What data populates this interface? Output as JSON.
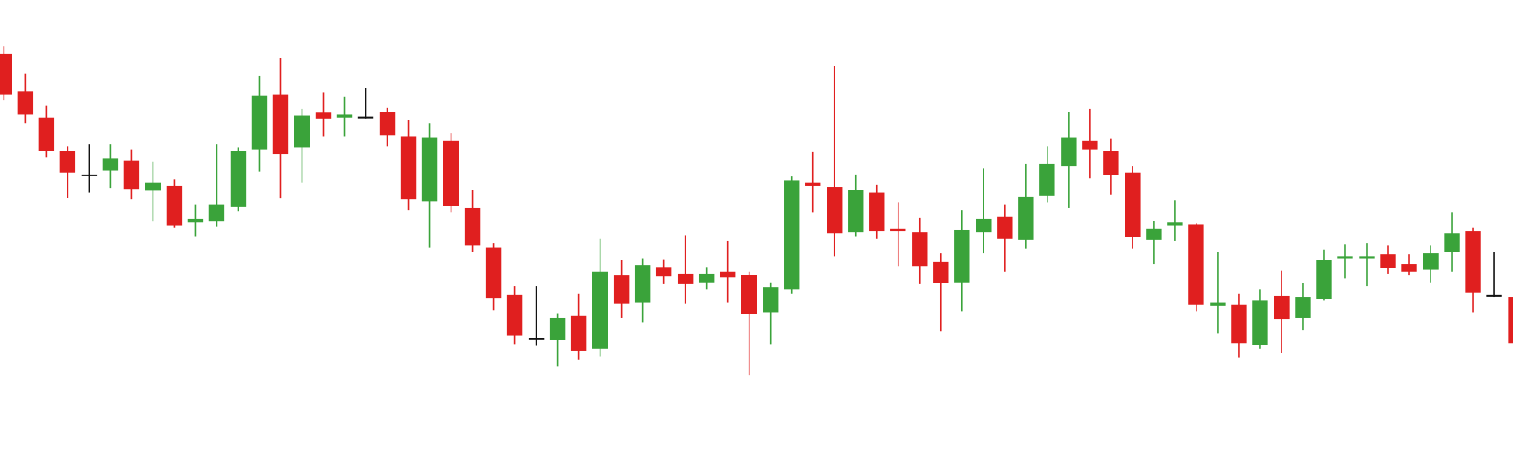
{
  "chart_data": {
    "type": "candlestick",
    "open": [
      411,
      372,
      345,
      310,
      286,
      290,
      300,
      269,
      274,
      236,
      237,
      252,
      312,
      369,
      314,
      350,
      345,
      346,
      351,
      325,
      258,
      321,
      251,
      210,
      161,
      116,
      114,
      139,
      105,
      181,
      153,
      190,
      183,
      174,
      185,
      182,
      143,
      167,
      277,
      273,
      226,
      267,
      230,
      226,
      195,
      174,
      226,
      242,
      218,
      264,
      295,
      321,
      310,
      288,
      218,
      233,
      234,
      150,
      151,
      109,
      160,
      137,
      157,
      199,
      199,
      203,
      193,
      187,
      205,
      227,
      161,
      159
    ],
    "high": [
      419,
      391,
      357,
      315,
      317,
      317,
      312,
      299,
      281,
      255,
      317,
      314,
      388,
      407,
      354,
      371,
      367,
      376,
      355,
      342,
      339,
      329,
      270,
      215,
      170,
      170,
      142,
      162,
      219,
      197,
      199,
      198,
      223,
      190,
      217,
      185,
      174,
      284,
      309,
      399,
      286,
      275,
      257,
      241,
      204,
      249,
      292,
      255,
      297,
      315,
      351,
      354,
      323,
      295,
      238,
      259,
      235,
      205,
      162,
      167,
      186,
      173,
      208,
      213,
      215,
      212,
      203,
      212,
      247,
      231,
      205,
      160
    ],
    "low": [
      363,
      339,
      304,
      262,
      267,
      272,
      260,
      237,
      231,
      222,
      232,
      248,
      289,
      261,
      277,
      325,
      325,
      344,
      315,
      249,
      210,
      247,
      205,
      145,
      110,
      108,
      87,
      94,
      97,
      137,
      132,
      172,
      152,
      167,
      153,
      78,
      110,
      162,
      247,
      201,
      222,
      219,
      191,
      172,
      123,
      144,
      204,
      185,
      209,
      257,
      251,
      282,
      265,
      209,
      193,
      217,
      144,
      121,
      96,
      105,
      101,
      124,
      155,
      178,
      170,
      183,
      181,
      174,
      185,
      143,
      159,
      106
    ],
    "close": [
      369,
      348,
      310,
      288,
      286,
      303,
      271,
      277,
      233,
      240,
      255,
      310,
      368,
      307,
      347,
      344,
      348,
      346,
      327,
      260,
      324,
      253,
      212,
      158,
      119,
      116,
      137,
      103,
      185,
      152,
      192,
      180,
      172,
      183,
      179,
      141,
      169,
      280,
      274,
      225,
      270,
      227,
      227,
      191,
      173,
      228,
      240,
      219,
      263,
      297,
      324,
      312,
      285,
      221,
      230,
      236,
      151,
      153,
      111,
      155,
      136,
      159,
      197,
      201,
      201,
      189,
      185,
      204,
      225,
      163,
      161,
      111
    ],
    "ylim": [
      0,
      467
    ],
    "up_color": "#3aa33a",
    "down_color": "#e01f1f",
    "flat_color": "#111111"
  }
}
